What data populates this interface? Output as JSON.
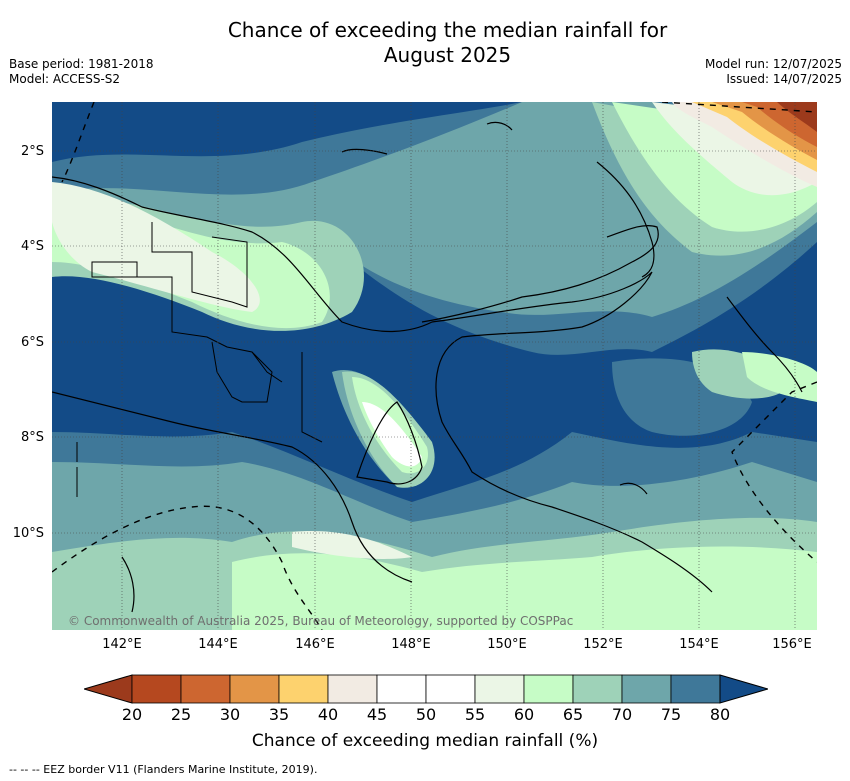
{
  "title_line1": "Chance of exceeding the median rainfall for",
  "title_line2": "August 2025",
  "base_period": "Base period: 1981-2018",
  "model": "Model: ACCESS-S2",
  "model_run": "Model run: 12/07/2025",
  "issued": "Issued: 14/07/2025",
  "lat_labels": [
    "2°S",
    "4°S",
    "6°S",
    "8°S",
    "10°S"
  ],
  "lon_labels": [
    "142°E",
    "144°E",
    "146°E",
    "148°E",
    "150°E",
    "152°E",
    "154°E",
    "156°E"
  ],
  "copyright": "© Commonwealth of Australia 2025, Bureau of Meteorology, supported by COSPPac",
  "colorbar": {
    "title": "Chance of exceeding median rainfall (%)",
    "ticks": [
      "20",
      "25",
      "30",
      "35",
      "40",
      "45",
      "50",
      "55",
      "60",
      "65",
      "70",
      "75",
      "80"
    ],
    "colors": [
      "#9c3a1c",
      "#b5481f",
      "#cd6630",
      "#e39547",
      "#fdd26e",
      "#f2ebe3",
      "#ffffff",
      "#ffffff",
      "#ebf6e6",
      "#c6fcc6",
      "#9ed2b8",
      "#6ea6aa",
      "#3f7899",
      "#134b87"
    ]
  },
  "footnote": "--  --  -- EEZ border V11 (Flanders Marine Institute, 2019)."
}
